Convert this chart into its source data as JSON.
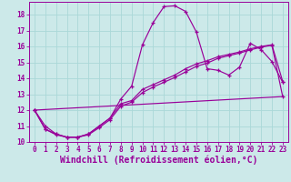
{
  "bg_color": "#cce9e9",
  "line_color": "#990099",
  "grid_color": "#aad8d8",
  "xlim": [
    -0.5,
    23.5
  ],
  "ylim": [
    10,
    18.8
  ],
  "yticks": [
    10,
    11,
    12,
    13,
    14,
    15,
    16,
    17,
    18
  ],
  "xticks": [
    0,
    1,
    2,
    3,
    4,
    5,
    6,
    7,
    8,
    9,
    10,
    11,
    12,
    13,
    14,
    15,
    16,
    17,
    18,
    19,
    20,
    21,
    22,
    23
  ],
  "xlabel": "Windchill (Refroidissement éolien,°C)",
  "xlabel_fontsize": 7.0,
  "tick_fontsize": 5.5,
  "series1_x": [
    0,
    1,
    2,
    3,
    4,
    5,
    6,
    7,
    8,
    9,
    10,
    11,
    12,
    13,
    14,
    15,
    16,
    17,
    18,
    19,
    20,
    21,
    22,
    23
  ],
  "series1_y": [
    12.0,
    11.0,
    10.5,
    10.3,
    10.3,
    10.5,
    11.0,
    11.5,
    12.7,
    13.5,
    16.1,
    17.5,
    18.5,
    18.55,
    18.2,
    16.9,
    14.6,
    14.5,
    14.2,
    14.7,
    16.2,
    15.8,
    15.05,
    13.75
  ],
  "series2_x": [
    0,
    1,
    2,
    3,
    4,
    5,
    6,
    7,
    8,
    9,
    10,
    11,
    12,
    13,
    14,
    15,
    16,
    17,
    18,
    19,
    20,
    21,
    22,
    23
  ],
  "series2_y": [
    12.0,
    10.8,
    10.5,
    10.3,
    10.3,
    10.5,
    11.0,
    11.5,
    12.4,
    12.6,
    13.3,
    13.6,
    13.9,
    14.2,
    14.6,
    14.9,
    15.1,
    15.35,
    15.5,
    15.65,
    15.85,
    16.0,
    16.1,
    13.8
  ],
  "series3_x": [
    0,
    1,
    2,
    3,
    4,
    5,
    6,
    7,
    8,
    9,
    10,
    11,
    12,
    13,
    14,
    15,
    16,
    17,
    18,
    19,
    20,
    21,
    22,
    23
  ],
  "series3_y": [
    12.0,
    10.8,
    10.45,
    10.3,
    10.3,
    10.45,
    10.9,
    11.4,
    12.25,
    12.5,
    13.1,
    13.45,
    13.75,
    14.05,
    14.4,
    14.75,
    14.95,
    15.25,
    15.42,
    15.58,
    15.78,
    15.95,
    16.08,
    12.85
  ],
  "series4_x": [
    0,
    23
  ],
  "series4_y": [
    12.0,
    12.85
  ]
}
